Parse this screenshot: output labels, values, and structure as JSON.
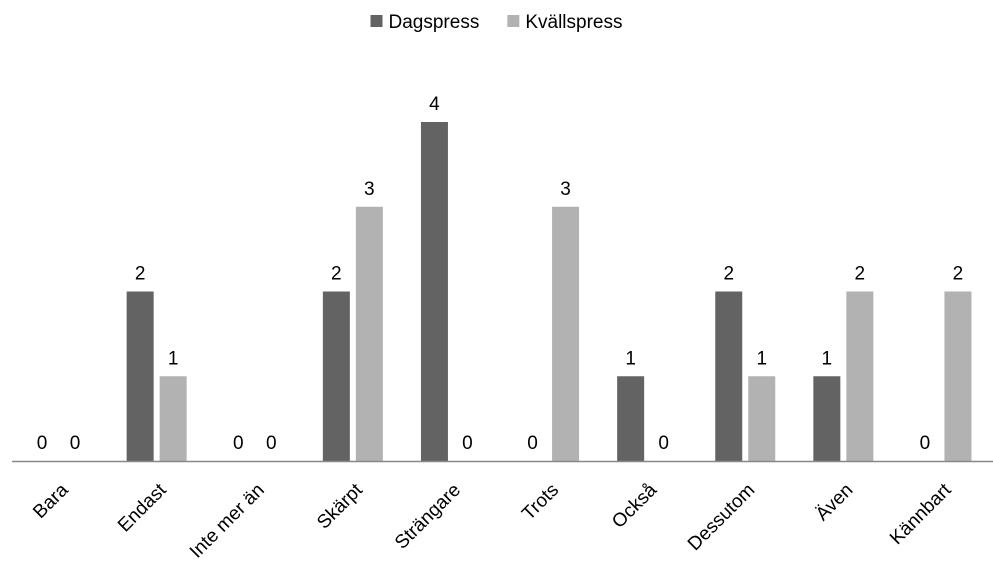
{
  "chart_data": {
    "type": "bar",
    "title": "",
    "xlabel": "",
    "ylabel": "",
    "categories": [
      "Bara",
      "Endast",
      "Inte mer än",
      "Skärpt",
      "Strängare",
      "Trots",
      "Också",
      "Dessutom",
      "Även",
      "Kännbart"
    ],
    "series": [
      {
        "name": "Dagspress",
        "values": [
          0,
          2,
          0,
          2,
          4,
          0,
          1,
          2,
          1,
          0
        ],
        "color": "#636363"
      },
      {
        "name": "Kvällspress",
        "values": [
          0,
          1,
          0,
          3,
          0,
          3,
          0,
          1,
          2,
          2
        ],
        "color": "#b2b2b2"
      }
    ],
    "ylim": [
      0,
      4
    ],
    "grid": false,
    "y_axis_visible": false,
    "data_labels": true,
    "legend_position": "top-center",
    "x_tick_rotation": -45
  }
}
